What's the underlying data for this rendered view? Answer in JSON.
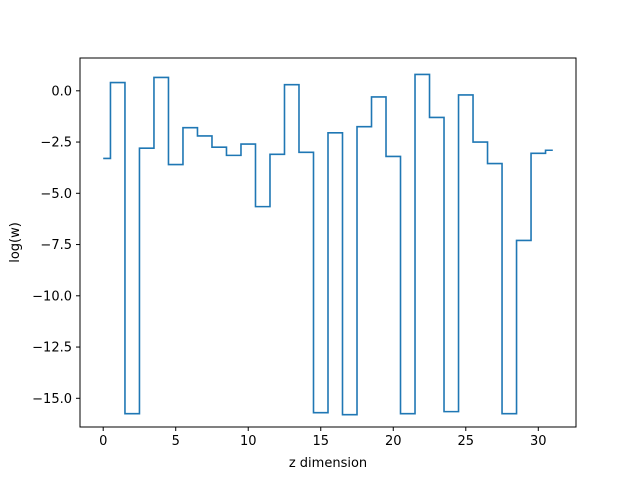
{
  "chart_data": {
    "type": "line",
    "drawstyle": "steps-mid",
    "title": "",
    "xlabel": "z dimension",
    "ylabel": "log(w)",
    "xlim": [
      -1.6,
      32.6
    ],
    "ylim": [
      -16.4,
      1.6
    ],
    "xticks": [
      0,
      5,
      10,
      15,
      20,
      25,
      30
    ],
    "xtick_labels": [
      "0",
      "5",
      "10",
      "15",
      "20",
      "25",
      "30"
    ],
    "yticks": [
      0.0,
      -2.5,
      -5.0,
      -7.5,
      -10.0,
      -12.5,
      -15.0
    ],
    "ytick_labels": [
      "0.0",
      "−2.5",
      "−5.0",
      "−7.5",
      "−10.0",
      "−12.5",
      "−15.0"
    ],
    "grid": false,
    "series": [
      {
        "color": "#1f77b4",
        "x": [
          0,
          1,
          2,
          3,
          4,
          5,
          6,
          7,
          8,
          9,
          10,
          11,
          12,
          13,
          14,
          15,
          16,
          17,
          18,
          19,
          20,
          21,
          22,
          23,
          24,
          25,
          26,
          27,
          28,
          29,
          30,
          31
        ],
        "y": [
          -3.3,
          0.4,
          -15.75,
          -2.8,
          0.65,
          -3.6,
          -1.8,
          -2.2,
          -2.75,
          -3.15,
          -2.6,
          -5.65,
          -3.1,
          0.3,
          -3.0,
          -15.7,
          -2.05,
          -15.8,
          -1.75,
          -0.3,
          -3.2,
          -15.75,
          0.8,
          -1.3,
          -15.65,
          -0.2,
          -2.5,
          -3.55,
          -15.75,
          -7.3,
          -3.05,
          -2.9
        ]
      }
    ]
  }
}
